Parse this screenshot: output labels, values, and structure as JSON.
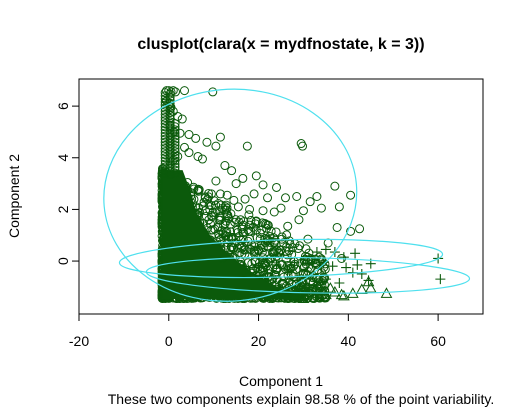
{
  "chart_data": {
    "type": "scatter",
    "title": "clusplot(clara(x = mydfnostate, k = 3))",
    "subtitle": "These two components explain 98.58 % of the point variability.",
    "xlabel": "Component 1",
    "ylabel": "Component 2",
    "xlim": [
      -20,
      70
    ],
    "ylim": [
      -2.05,
      7.05
    ],
    "x_ticks": [
      -20,
      0,
      20,
      40,
      60
    ],
    "y_ticks": [
      0,
      2,
      4,
      6
    ],
    "grid": false,
    "legend": "none",
    "colors": {
      "points": "#0b5a0b",
      "ellipses": "#4fe0ee",
      "axes": "#000000"
    },
    "ellipses": [
      {
        "center": [
          13.7,
          2.55
        ],
        "semi_axes": [
          28.2,
          4.1
        ],
        "rotation_deg": -5
      },
      {
        "center": [
          25.0,
          0.1
        ],
        "semi_axes": [
          36.0,
          0.72
        ],
        "rotation_deg": -1.5
      },
      {
        "center": [
          31.0,
          -0.55
        ],
        "semi_axes": [
          36.0,
          0.68
        ],
        "rotation_deg": 1.2
      }
    ],
    "series": [
      {
        "marker": "circle",
        "points": [
          [
            -0.5,
            6.6
          ],
          [
            0,
            6.6
          ],
          [
            0.5,
            6.55
          ],
          [
            1,
            6.6
          ],
          [
            1.5,
            6.55
          ],
          [
            3.5,
            6.6
          ],
          [
            9.8,
            6.55
          ],
          [
            -0.5,
            6.2
          ],
          [
            0,
            6.1
          ],
          [
            0.5,
            5.95
          ],
          [
            1,
            5.8
          ],
          [
            2,
            5.6
          ],
          [
            3,
            5.5
          ],
          [
            0.3,
            5.25
          ],
          [
            1.2,
            5.0
          ],
          [
            2.5,
            4.95
          ],
          [
            4.5,
            4.9
          ],
          [
            6,
            4.75
          ],
          [
            8.5,
            4.6
          ],
          [
            11.5,
            4.8
          ],
          [
            10.5,
            4.45
          ],
          [
            29.5,
            4.55
          ],
          [
            29.8,
            4.45
          ],
          [
            17.5,
            4.45
          ],
          [
            3.5,
            4.4
          ],
          [
            4.5,
            4.2
          ],
          [
            2,
            4.05
          ],
          [
            6.5,
            4.05
          ],
          [
            1,
            3.9
          ],
          [
            7.5,
            3.95
          ],
          [
            12.5,
            3.7
          ],
          [
            14,
            3.5
          ],
          [
            19.5,
            3.3
          ],
          [
            16.5,
            3.2
          ],
          [
            10.5,
            3.1
          ],
          [
            15,
            3.0
          ],
          [
            21,
            2.95
          ],
          [
            24,
            2.85
          ],
          [
            37,
            2.9
          ],
          [
            9.5,
            2.6
          ],
          [
            11.5,
            2.6
          ],
          [
            13,
            2.55
          ],
          [
            19,
            2.6
          ],
          [
            22,
            2.45
          ],
          [
            26,
            2.45
          ],
          [
            28.5,
            2.5
          ],
          [
            33,
            2.5
          ],
          [
            40.5,
            2.55
          ],
          [
            14.5,
            2.35
          ],
          [
            17,
            2.4
          ],
          [
            31.5,
            2.3
          ],
          [
            9.5,
            2.15
          ],
          [
            12,
            2.05
          ],
          [
            15.5,
            2.1
          ],
          [
            18,
            2.0
          ],
          [
            21,
            1.95
          ],
          [
            25,
            2.05
          ],
          [
            23.5,
            1.9
          ],
          [
            30,
            1.95
          ],
          [
            34,
            2.05
          ],
          [
            38,
            2.1
          ],
          [
            13,
            1.75
          ],
          [
            16,
            1.6
          ],
          [
            19.5,
            1.55
          ],
          [
            26.5,
            1.35
          ],
          [
            29,
            1.6
          ],
          [
            37.5,
            1.3
          ],
          [
            40.5,
            1.15
          ],
          [
            11,
            1.3
          ],
          [
            16.5,
            1.1
          ],
          [
            18,
            0.85
          ],
          [
            22.5,
            0.95
          ],
          [
            31,
            0.85
          ],
          [
            35.5,
            0.7
          ],
          [
            42.5,
            1.25
          ],
          [
            27,
            0.65
          ],
          [
            14,
            0.55
          ],
          [
            20,
            0.4
          ],
          [
            24.5,
            0.3
          ],
          [
            33.5,
            0.15
          ],
          [
            38.5,
            0.1
          ],
          [
            12,
            0.1
          ],
          [
            18.5,
            -0.1
          ],
          [
            26,
            -0.3
          ],
          [
            30,
            -0.5
          ]
        ]
      },
      {
        "marker": "plus",
        "points": [
          [
            33,
            0.35
          ],
          [
            35,
            0.45
          ],
          [
            37,
            0.35
          ],
          [
            39,
            0.15
          ],
          [
            41.5,
            0.3
          ],
          [
            30,
            0.05
          ],
          [
            32,
            -0.1
          ],
          [
            34.5,
            -0.05
          ],
          [
            36.5,
            -0.2
          ],
          [
            39.5,
            -0.25
          ],
          [
            41,
            -0.45
          ],
          [
            43,
            -0.5
          ],
          [
            45,
            -0.1
          ],
          [
            24,
            -0.15
          ],
          [
            26.5,
            -0.35
          ],
          [
            28,
            -0.05
          ],
          [
            22,
            -0.5
          ],
          [
            20,
            -0.25
          ],
          [
            18,
            -0.45
          ],
          [
            29,
            -0.65
          ],
          [
            31.5,
            -0.55
          ],
          [
            35,
            -0.7
          ],
          [
            38,
            -0.85
          ],
          [
            42,
            -0.15
          ],
          [
            60,
            0.1
          ],
          [
            60.5,
            -0.7
          ],
          [
            44.5,
            -0.75
          ]
        ]
      },
      {
        "marker": "triangle",
        "points": [
          [
            25,
            -1.1
          ],
          [
            27,
            -1.15
          ],
          [
            29,
            -1.2
          ],
          [
            31,
            -1.1
          ],
          [
            33,
            -1.25
          ],
          [
            35,
            -1.3
          ],
          [
            37,
            -1.2
          ],
          [
            39,
            -1.35
          ],
          [
            41,
            -1.25
          ],
          [
            43,
            -1.1
          ],
          [
            44.5,
            -0.8
          ],
          [
            45,
            -1.05
          ],
          [
            36,
            -1.05
          ],
          [
            34,
            -1.3
          ],
          [
            48.5,
            -1.25
          ],
          [
            32.5,
            -1.4
          ],
          [
            38.5,
            -1.3
          ],
          [
            30,
            -1.45
          ],
          [
            28,
            -1.3
          ],
          [
            26,
            -1.25
          ],
          [
            24,
            -1.3
          ]
        ]
      }
    ],
    "dense_region": {
      "x": [
        -1.5,
        35
      ],
      "y": [
        -1.45,
        3.6
      ],
      "note_points_per_unit": "very dense near x in [-1,10]"
    }
  }
}
